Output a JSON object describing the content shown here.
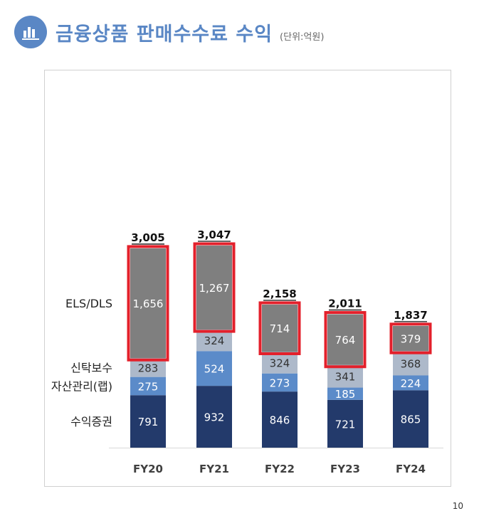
{
  "header": {
    "title": "금융상품 판매수수료 수익",
    "unit": "(단위:억원)",
    "icon": "bar-chart-icon"
  },
  "page_number": "10",
  "colors": {
    "title": "#5a87c5",
    "els_dls": "#7f7f7f",
    "trust": "#adb9ca",
    "wrap": "#5b8bc9",
    "brokerage": "#233a6b",
    "highlight": "#e3202b"
  },
  "chart_data": {
    "type": "bar",
    "stacked": true,
    "title": "금융상품 판매수수료 수익",
    "unit": "(단위:억원)",
    "categories": [
      "FY20",
      "FY21",
      "FY22",
      "FY23",
      "FY24"
    ],
    "series": [
      {
        "name": "수익증권",
        "values": [
          791,
          932,
          846,
          721,
          865
        ],
        "color": "#233a6b"
      },
      {
        "name": "자산관리(랩)",
        "values": [
          275,
          524,
          273,
          185,
          224
        ],
        "color": "#5b8bc9"
      },
      {
        "name": "신탁보수",
        "values": [
          283,
          324,
          324,
          341,
          368
        ],
        "color": "#adb9ca"
      },
      {
        "name": "ELS/DLS",
        "values": [
          1656,
          1267,
          714,
          764,
          379
        ],
        "color": "#7f7f7f"
      }
    ],
    "totals": [
      "3,005",
      "3,047",
      "2,158",
      "2,011",
      "1,837"
    ],
    "highlighted_series": "ELS/DLS",
    "legend_position": "left",
    "grid": false
  }
}
